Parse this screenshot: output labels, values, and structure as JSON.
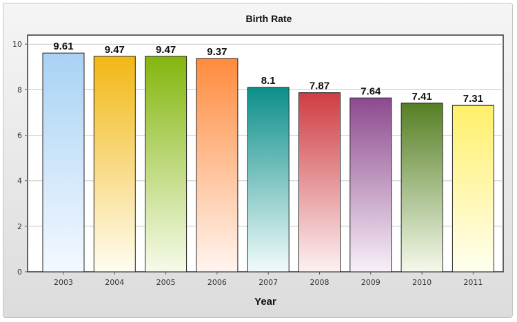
{
  "chart_data": {
    "type": "bar",
    "title": "Birth Rate",
    "xlabel": "Year",
    "ylabel": "",
    "categories": [
      "2003",
      "2004",
      "2005",
      "2006",
      "2007",
      "2008",
      "2009",
      "2010",
      "2011"
    ],
    "values": [
      9.61,
      9.47,
      9.47,
      9.37,
      8.1,
      7.87,
      7.64,
      7.41,
      7.31
    ],
    "value_labels": [
      "9.61",
      "9.47",
      "9.47",
      "9.37",
      "8.1",
      "7.87",
      "7.64",
      "7.41",
      "7.31"
    ],
    "yticks": [
      "0",
      "2",
      "4",
      "6",
      "8",
      "10"
    ],
    "ylim": [
      0,
      10.4
    ],
    "grid": true,
    "legend": "none",
    "colors": [
      [
        "#a9d2f5",
        "#f3f9ff"
      ],
      [
        "#f2b714",
        "#fffdf2"
      ],
      [
        "#84b60e",
        "#f6fbea"
      ],
      [
        "#ff8b3d",
        "#fff5f0"
      ],
      [
        "#0d8f8a",
        "#f1fbfa"
      ],
      [
        "#cf3d43",
        "#fdf1f2"
      ],
      [
        "#8c4a8e",
        "#f8f0f8"
      ],
      [
        "#567f24",
        "#f4f9ec"
      ],
      [
        "#ffef6a",
        "#fffff0"
      ]
    ]
  }
}
